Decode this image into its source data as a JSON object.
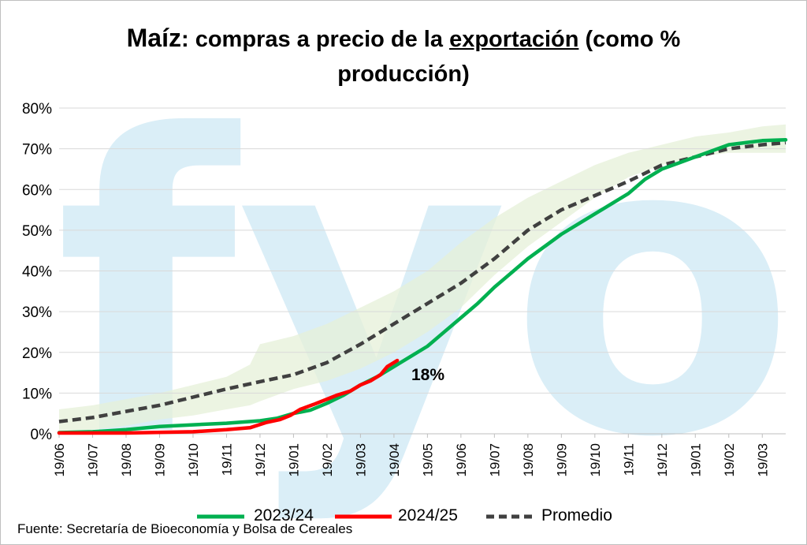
{
  "title": {
    "part1": "Maíz",
    "part2": ": compras a precio de la ",
    "part3": "exportación",
    "part4": " (como %",
    "line2": "producción)"
  },
  "watermark_text": "fyo",
  "colors": {
    "series_2023": "#00b050",
    "series_2024": "#ff0000",
    "promedio": "#404040",
    "band": "#e6f0d8",
    "watermark": "#daeef7",
    "grid": "#d9d9d9"
  },
  "source": "Fuente: Secretaría de Bioeconomía y Bolsa de Cereales",
  "chart_data": {
    "type": "line",
    "ylim": [
      0,
      80
    ],
    "y_ticks": [
      0,
      10,
      20,
      30,
      40,
      50,
      60,
      70,
      80
    ],
    "y_tick_labels": [
      "0%",
      "10%",
      "20%",
      "30%",
      "40%",
      "50%",
      "60%",
      "70%",
      "80%"
    ],
    "x_tick_labels": [
      "19/06",
      "19/07",
      "19/08",
      "19/09",
      "19/10",
      "19/11",
      "19/12",
      "19/01",
      "19/02",
      "19/03",
      "19/04",
      "19/05",
      "19/06",
      "19/07",
      "19/08",
      "19/09",
      "19/10",
      "19/11",
      "19/12",
      "19/01",
      "19/02",
      "19/03"
    ],
    "x_range_months": [
      0,
      21.7
    ],
    "grid": "horizontal",
    "legend_position": "bottom",
    "annotation": {
      "text": "18%",
      "x": 10.45,
      "y": 18
    },
    "band": {
      "x": [
        0,
        1,
        2,
        3,
        4,
        5,
        5.7,
        6,
        7,
        8,
        9,
        10,
        11,
        12,
        13,
        14,
        15,
        16,
        17,
        18,
        19,
        20,
        21,
        21.7
      ],
      "lower": [
        0,
        1,
        2,
        3.5,
        4.5,
        6,
        7,
        8,
        11,
        13,
        16,
        20,
        25,
        31,
        39,
        46,
        52,
        58,
        63,
        66,
        68,
        69,
        69,
        69
      ],
      "upper": [
        6,
        7,
        8.5,
        10,
        12,
        14,
        17,
        22,
        24,
        27,
        31,
        35,
        40,
        47,
        53,
        58,
        62,
        66,
        69,
        71,
        73,
        74,
        75.5,
        76
      ]
    },
    "series": [
      {
        "name": "2023/24",
        "style": "solid",
        "x": [
          0,
          1,
          2,
          3,
          4,
          5,
          6,
          6.5,
          7,
          7.5,
          8,
          8.5,
          9,
          9.5,
          10,
          10.5,
          11,
          11.5,
          12,
          12.5,
          13,
          13.5,
          14,
          14.5,
          15,
          15.5,
          16,
          16.5,
          17,
          17.5,
          18,
          18.5,
          19,
          19.5,
          20,
          20.5,
          21,
          21.7
        ],
        "values": [
          0.3,
          0.5,
          1,
          1.8,
          2.2,
          2.6,
          3.2,
          3.8,
          5,
          5.8,
          7.5,
          9.5,
          12,
          14,
          16.5,
          19,
          21.5,
          25,
          28.5,
          32,
          36,
          39.5,
          43,
          46,
          49,
          51.5,
          54,
          56.5,
          59,
          62.5,
          65,
          66.5,
          68,
          69.5,
          71,
          71.5,
          72,
          72.2
        ]
      },
      {
        "name": "2024/25",
        "style": "solid",
        "x": [
          0,
          2,
          4,
          5,
          5.7,
          6.2,
          6.6,
          6.9,
          7.2,
          7.6,
          8,
          8.3,
          8.7,
          9,
          9.3,
          9.6,
          9.8,
          10,
          10.1
        ],
        "values": [
          0.2,
          0.2,
          0.5,
          1,
          1.5,
          2.8,
          3.5,
          4.5,
          6,
          7.2,
          8.5,
          9.5,
          10.5,
          12,
          13,
          14.5,
          16.5,
          17.5,
          18
        ]
      },
      {
        "name": "Promedio",
        "style": "dashed",
        "x": [
          0,
          1,
          2,
          3,
          4,
          5,
          6,
          7,
          8,
          9,
          10,
          11,
          12,
          13,
          14,
          15,
          16,
          17,
          18,
          19,
          20,
          21,
          21.7
        ],
        "values": [
          3,
          4,
          5.5,
          7,
          9,
          11,
          12.8,
          14.5,
          17.5,
          22,
          27,
          32,
          37,
          43,
          50,
          55,
          58.5,
          62,
          66,
          68,
          70,
          71,
          71.5
        ]
      }
    ]
  }
}
